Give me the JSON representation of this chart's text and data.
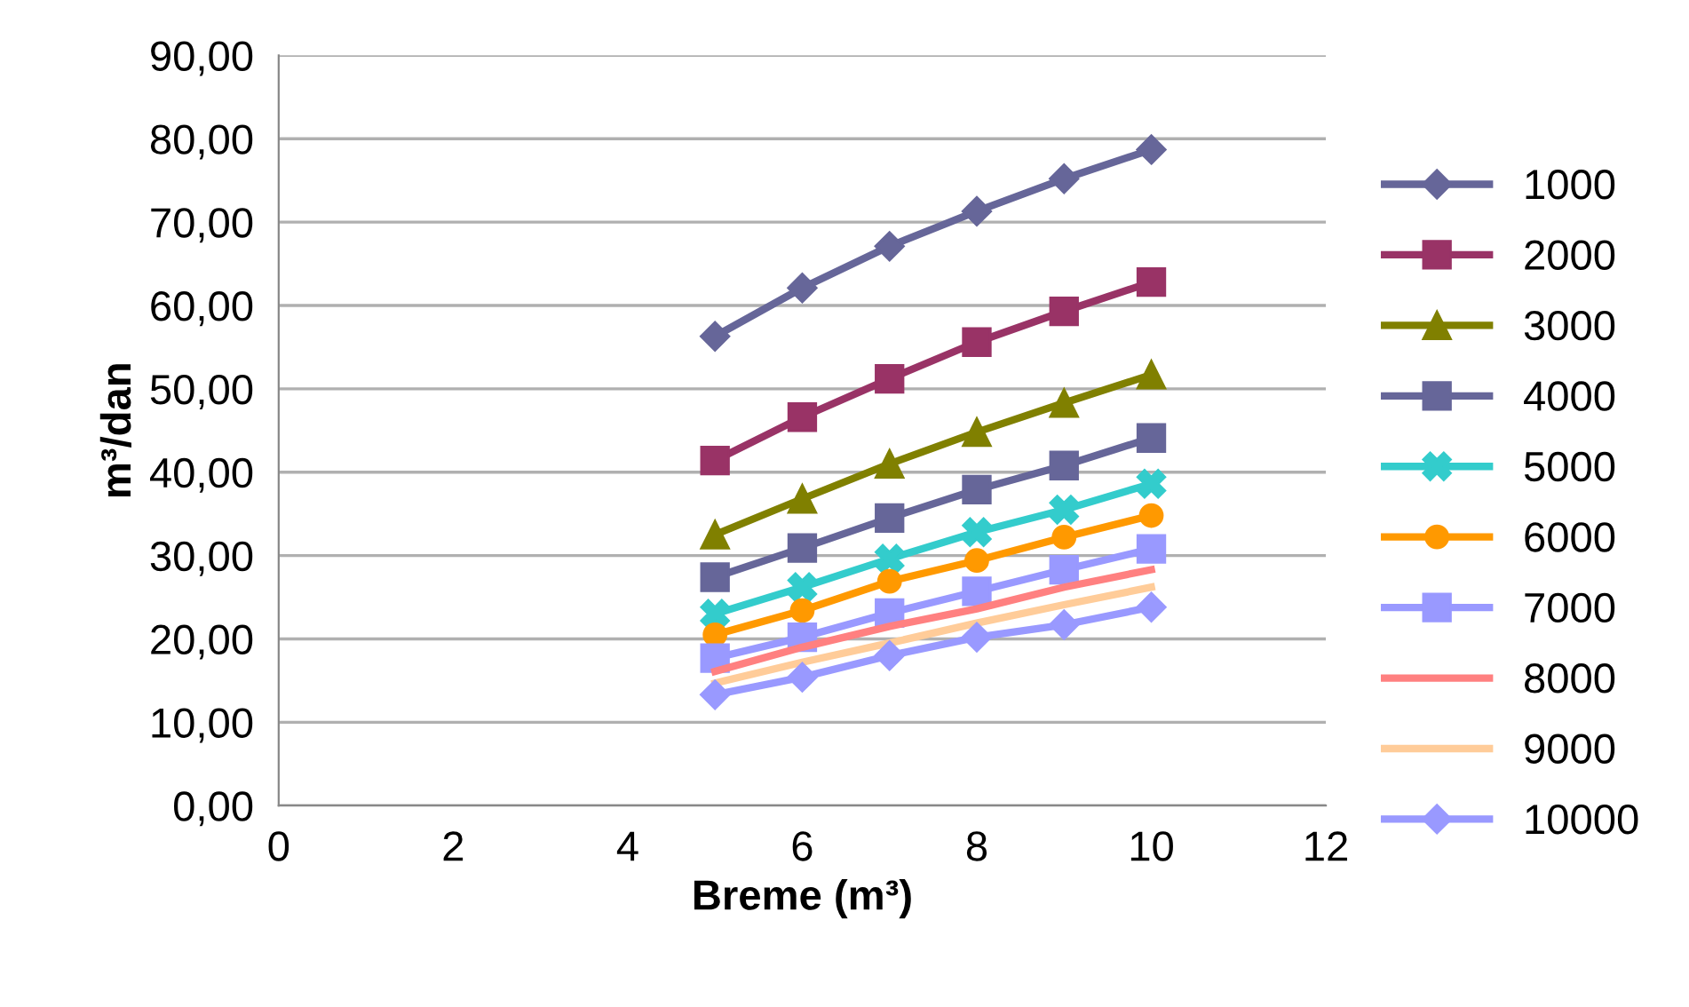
{
  "chart_data": {
    "type": "line",
    "xlabel": "Breme (m³)",
    "ylabel": "m³/dan",
    "x": [
      5,
      6,
      7,
      8,
      9,
      10
    ],
    "xlim": [
      0,
      12
    ],
    "xticks": [
      0,
      2,
      4,
      6,
      8,
      10,
      12
    ],
    "ylim": [
      0,
      90
    ],
    "yticks": [
      {
        "value": 0,
        "label": "0,00"
      },
      {
        "value": 10,
        "label": "10,00"
      },
      {
        "value": 20,
        "label": "20,00"
      },
      {
        "value": 30,
        "label": "30,00"
      },
      {
        "value": 40,
        "label": "40,00"
      },
      {
        "value": 50,
        "label": "50,00"
      },
      {
        "value": 60,
        "label": "60,00"
      },
      {
        "value": 70,
        "label": "70,00"
      },
      {
        "value": 80,
        "label": "80,00"
      },
      {
        "value": 90,
        "label": "90,00"
      }
    ],
    "grid": "y",
    "legend": "right",
    "line_style": "solid",
    "series": [
      {
        "name": "1000",
        "color": "#666699",
        "marker": "diamond",
        "values": [
          56.3,
          62.1,
          67.1,
          71.3,
          75.2,
          78.7
        ]
      },
      {
        "name": "2000",
        "color": "#993366",
        "marker": "square",
        "values": [
          41.4,
          46.6,
          51.2,
          55.6,
          59.3,
          62.8
        ]
      },
      {
        "name": "3000",
        "color": "#808000",
        "marker": "triangle",
        "values": [
          32.5,
          36.8,
          41.0,
          44.8,
          48.3,
          51.7
        ]
      },
      {
        "name": "4000",
        "color": "#666699",
        "marker": "square",
        "values": [
          27.4,
          30.9,
          34.5,
          37.9,
          40.8,
          44.1
        ]
      },
      {
        "name": "5000",
        "color": "#33cccc",
        "marker": "cross",
        "values": [
          23.0,
          26.2,
          29.6,
          32.8,
          35.5,
          38.6
        ]
      },
      {
        "name": "6000",
        "color": "#ff9900",
        "marker": "circle",
        "values": [
          20.5,
          23.4,
          26.9,
          29.4,
          32.2,
          34.8
        ]
      },
      {
        "name": "7000",
        "color": "#9999ff",
        "marker": "square",
        "values": [
          17.7,
          20.2,
          23.1,
          25.7,
          28.3,
          30.8
        ]
      },
      {
        "name": "8000",
        "color": "#ff8080",
        "marker": "none",
        "values": [
          16.1,
          19.0,
          21.5,
          23.6,
          26.2,
          28.3
        ]
      },
      {
        "name": "9000",
        "color": "#ffcc99",
        "marker": "none",
        "values": [
          14.7,
          17.2,
          19.5,
          21.9,
          24.1,
          26.2
        ]
      },
      {
        "name": "10000",
        "color": "#9999ff",
        "marker": "diamond",
        "values": [
          13.3,
          15.4,
          18.0,
          20.2,
          21.7,
          23.8
        ]
      }
    ]
  }
}
